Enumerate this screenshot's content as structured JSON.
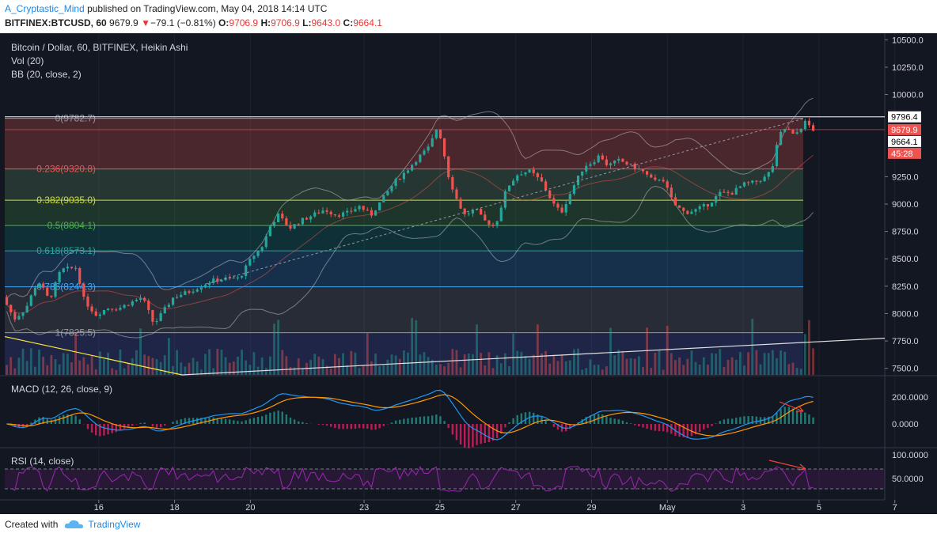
{
  "header": {
    "username": "A_Cryptastic_Mind",
    "published_text": "published on TradingView.com, May 04, 2018 14:14 UTC",
    "symbol": "BITFINEX:BTCUSD, 60",
    "last": "9679.9",
    "change": "−79.1 (−0.81%)",
    "o_label": "O:",
    "o_value": "9706.9",
    "h_label": "H:",
    "h_value": "9706.9",
    "l_label": "L:",
    "l_value": "9643.0",
    "c_label": "C:",
    "c_value": "9664.1"
  },
  "chart": {
    "title": "Bitcoin / Dollar, 60, BITFINEX, Heikin Ashi",
    "vol_label": "Vol (20)",
    "bb_label": "BB (20, close, 2)",
    "macd_label": "MACD (12, 26, close, 9)",
    "rsi_label": "RSI (14, close)",
    "price_badges": [
      {
        "text": "9796.4",
        "value": 9796.4,
        "bg": "#ffffff",
        "fg": "#000000"
      },
      {
        "text": "9679.9",
        "value": 9679.9,
        "bg": "#ef5350",
        "fg": "#ffffff"
      },
      {
        "text": "9664.1",
        "value": 9664.1,
        "bg": "#ffffff",
        "fg": "#000000"
      },
      {
        "text": "45:28",
        "value": 9555,
        "bg": "#ef5350",
        "fg": "#ffffff"
      }
    ],
    "colors": {
      "up": "#26a69a",
      "down": "#ef5350",
      "macd": "#2196f3",
      "signal": "#ff9800",
      "rsi": "#9c27b0",
      "bb": "#c0c0c0"
    }
  },
  "chart_data": {
    "type": "candlestick",
    "y_ticks": [
      "10500.0",
      "10250.0",
      "10000.0",
      "9250.0",
      "9000.0",
      "8750.0",
      "8500.0",
      "8250.0",
      "8000.0",
      "7750.0",
      "7500.0"
    ],
    "ylim": [
      7440,
      10560
    ],
    "x_ticks": [
      "16",
      "18",
      "20",
      "23",
      "25",
      "27",
      "29",
      "May",
      "3",
      "5",
      "7"
    ],
    "x_tick_day_index": [
      2,
      4,
      6,
      9,
      11,
      13,
      15,
      17,
      19,
      21,
      23
    ],
    "fib_levels": [
      {
        "label": "0(9782.7)",
        "value": 9782.7,
        "color": "#9598a1",
        "fill": "rgba(239,83,80,0.25)"
      },
      {
        "label": "0.236(9320.8)",
        "value": 9320.8,
        "color": "#ef5350",
        "fill": "rgba(129,199,132,0.18)"
      },
      {
        "label": "0.382(9035.0)",
        "value": 9035.0,
        "color": "#cddc39",
        "fill": "rgba(76,175,80,0.20)"
      },
      {
        "label": "0.5(8804.1)",
        "value": 8804.1,
        "color": "#4caf50",
        "fill": "rgba(0,150,136,0.20)"
      },
      {
        "label": "0.618(8573.1)",
        "value": 8573.1,
        "color": "#26a69a",
        "fill": "rgba(33,150,243,0.20)"
      },
      {
        "label": "0.786(8244.3)",
        "value": 8244.3,
        "color": "#42a5f5",
        "fill": "rgba(120,123,134,0.22)"
      },
      {
        "label": "1(7825.5)",
        "value": 7825.5,
        "color": "#9598a1",
        "fill": "rgba(63,81,181,0.25)"
      }
    ],
    "macd_ticks": [
      "200.0000",
      "0.0000"
    ],
    "rsi_ticks": [
      "100.0000",
      "50.0000"
    ],
    "price_path": [
      [
        0,
        8150
      ],
      [
        0.3,
        7950
      ],
      [
        0.6,
        8050
      ],
      [
        0.9,
        8300
      ],
      [
        1.0,
        8250
      ],
      [
        1.2,
        8120
      ],
      [
        1.5,
        8400
      ],
      [
        1.9,
        8420
      ],
      [
        2.1,
        8120
      ],
      [
        2.4,
        7990
      ],
      [
        2.7,
        8050
      ],
      [
        3.0,
        8050
      ],
      [
        3.3,
        8100
      ],
      [
        3.6,
        8150
      ],
      [
        3.9,
        7900
      ],
      [
        4.1,
        8000
      ],
      [
        4.4,
        8150
      ],
      [
        4.8,
        8200
      ],
      [
        5.1,
        8250
      ],
      [
        5.4,
        8300
      ],
      [
        5.8,
        8320
      ],
      [
        6.1,
        8320
      ],
      [
        6.4,
        8500
      ],
      [
        6.7,
        8620
      ],
      [
        6.9,
        8800
      ],
      [
        7.1,
        8900
      ],
      [
        7.4,
        8780
      ],
      [
        7.7,
        8850
      ],
      [
        8.0,
        8900
      ],
      [
        8.3,
        8950
      ],
      [
        8.6,
        8900
      ],
      [
        8.9,
        8920
      ],
      [
        9.2,
        8980
      ],
      [
        9.5,
        8900
      ],
      [
        9.8,
        9050
      ],
      [
        10.1,
        9200
      ],
      [
        10.4,
        9300
      ],
      [
        10.7,
        9420
      ],
      [
        11.0,
        9520
      ],
      [
        11.2,
        9700
      ],
      [
        11.3,
        9600
      ],
      [
        11.5,
        9250
      ],
      [
        11.7,
        9050
      ],
      [
        11.9,
        8900
      ],
      [
        12.2,
        8950
      ],
      [
        12.4,
        8850
      ],
      [
        12.7,
        8800
      ],
      [
        13.0,
        9150
      ],
      [
        13.3,
        9280
      ],
      [
        13.6,
        9300
      ],
      [
        13.9,
        9200
      ],
      [
        14.2,
        9000
      ],
      [
        14.4,
        8920
      ],
      [
        14.7,
        9150
      ],
      [
        15.0,
        9350
      ],
      [
        15.2,
        9380
      ],
      [
        15.4,
        9450
      ],
      [
        15.6,
        9350
      ],
      [
        15.9,
        9400
      ],
      [
        16.2,
        9350
      ],
      [
        16.5,
        9300
      ],
      [
        16.8,
        9200
      ],
      [
        17.0,
        9250
      ],
      [
        17.3,
        9000
      ],
      [
        17.6,
        8920
      ],
      [
        17.9,
        8950
      ],
      [
        18.2,
        9000
      ],
      [
        18.5,
        9100
      ],
      [
        18.8,
        9100
      ],
      [
        19.1,
        9180
      ],
      [
        19.4,
        9200
      ],
      [
        19.7,
        9250
      ],
      [
        19.9,
        9380
      ],
      [
        20.0,
        9620
      ],
      [
        20.2,
        9700
      ],
      [
        20.4,
        9620
      ],
      [
        20.7,
        9750
      ],
      [
        20.9,
        9680
      ]
    ],
    "volume_bars": 200
  }
}
